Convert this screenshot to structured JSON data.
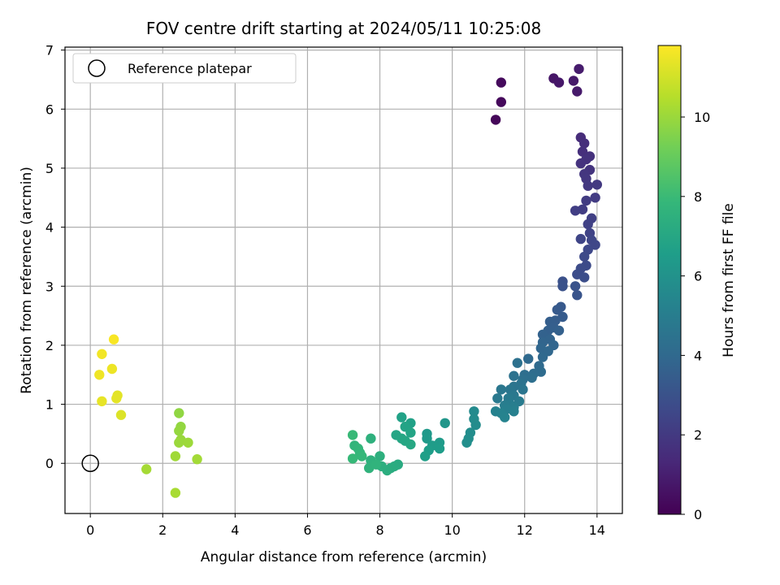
{
  "chart_data": {
    "type": "scatter",
    "title": "FOV centre drift starting at 2024/05/11 10:25:08",
    "xlabel": "Angular distance from reference (arcmin)",
    "ylabel": "Rotation from reference (arcmin)",
    "xlim": [
      -0.7,
      14.7
    ],
    "ylim": [
      -0.85,
      7.05
    ],
    "xticks": [
      0,
      2,
      4,
      6,
      8,
      10,
      12,
      14
    ],
    "yticks": [
      0,
      1,
      2,
      3,
      4,
      5,
      6,
      7
    ],
    "grid": true,
    "legend": {
      "placement": "top-left",
      "entries": [
        {
          "label": "Reference platepar",
          "marker": "open-circle"
        }
      ]
    },
    "reference_point": {
      "label": "Reference platepar",
      "x": 0,
      "y": 0
    },
    "colorbar": {
      "label": "Hours from first FF file",
      "colormap": "viridis",
      "range": [
        0,
        11.8
      ],
      "ticks": [
        0,
        2,
        4,
        6,
        8,
        10
      ]
    },
    "colormap_stops": [
      "#440154",
      "#482878",
      "#3e4989",
      "#31688e",
      "#26828e",
      "#1f9e89",
      "#35b779",
      "#6ece58",
      "#b5de2b",
      "#fde725"
    ],
    "series": [
      {
        "color_by": "hours",
        "points": [
          [
            11.2,
            5.82,
            0.2
          ],
          [
            11.35,
            6.12,
            0.25
          ],
          [
            11.35,
            6.45,
            0.3
          ],
          [
            12.8,
            6.52,
            0.7
          ],
          [
            12.95,
            6.45,
            0.75
          ],
          [
            13.35,
            6.48,
            0.8
          ],
          [
            13.45,
            6.3,
            0.85
          ],
          [
            13.5,
            6.68,
            0.9
          ],
          [
            13.55,
            5.52,
            1.5
          ],
          [
            13.65,
            5.42,
            1.55
          ],
          [
            13.6,
            5.28,
            1.6
          ],
          [
            13.8,
            5.2,
            1.65
          ],
          [
            13.7,
            5.15,
            1.7
          ],
          [
            13.55,
            5.08,
            1.75
          ],
          [
            13.8,
            4.97,
            1.8
          ],
          [
            13.65,
            4.9,
            1.85
          ],
          [
            13.7,
            4.82,
            1.9
          ],
          [
            13.75,
            4.7,
            1.95
          ],
          [
            14.0,
            4.72,
            2.0
          ],
          [
            13.95,
            4.5,
            2.05
          ],
          [
            13.7,
            4.45,
            2.1
          ],
          [
            13.6,
            4.3,
            2.15
          ],
          [
            13.4,
            4.28,
            2.2
          ],
          [
            13.85,
            4.15,
            2.25
          ],
          [
            13.75,
            4.05,
            2.3
          ],
          [
            13.8,
            3.9,
            2.4
          ],
          [
            13.55,
            3.8,
            2.45
          ],
          [
            13.85,
            3.78,
            2.5
          ],
          [
            13.95,
            3.7,
            2.55
          ],
          [
            13.75,
            3.62,
            2.6
          ],
          [
            13.65,
            3.5,
            2.65
          ],
          [
            13.7,
            3.35,
            2.7
          ],
          [
            13.55,
            3.3,
            2.75
          ],
          [
            13.45,
            3.2,
            2.8
          ],
          [
            13.65,
            3.15,
            2.85
          ],
          [
            13.05,
            3.08,
            2.95
          ],
          [
            13.05,
            3.0,
            3.0
          ],
          [
            13.4,
            3.0,
            3.05
          ],
          [
            13.45,
            2.85,
            3.1
          ],
          [
            13.0,
            2.65,
            3.3
          ],
          [
            12.9,
            2.6,
            3.35
          ],
          [
            13.05,
            2.48,
            3.4
          ],
          [
            12.85,
            2.42,
            3.45
          ],
          [
            12.7,
            2.4,
            3.5
          ],
          [
            12.8,
            2.3,
            3.55
          ],
          [
            12.65,
            2.25,
            3.6
          ],
          [
            12.95,
            2.25,
            3.65
          ],
          [
            12.5,
            2.18,
            3.7
          ],
          [
            12.7,
            2.1,
            3.75
          ],
          [
            12.5,
            2.05,
            3.8
          ],
          [
            12.8,
            2.0,
            3.85
          ],
          [
            12.45,
            1.95,
            3.9
          ],
          [
            12.65,
            1.9,
            3.95
          ],
          [
            12.5,
            1.8,
            4.0
          ],
          [
            12.1,
            1.77,
            4.05
          ],
          [
            12.4,
            1.65,
            4.1
          ],
          [
            12.45,
            1.55,
            4.15
          ],
          [
            12.25,
            1.52,
            4.2
          ],
          [
            12.0,
            1.5,
            4.25
          ],
          [
            12.2,
            1.45,
            4.3
          ],
          [
            11.95,
            1.42,
            4.35
          ],
          [
            11.8,
            1.7,
            4.4
          ],
          [
            11.7,
            1.48,
            4.45
          ],
          [
            11.9,
            1.35,
            4.5
          ],
          [
            11.7,
            1.3,
            4.55
          ],
          [
            11.95,
            1.25,
            4.6
          ],
          [
            11.6,
            1.25,
            4.65
          ],
          [
            11.35,
            1.25,
            4.7
          ],
          [
            11.7,
            1.15,
            4.75
          ],
          [
            11.25,
            1.1,
            4.8
          ],
          [
            11.55,
            1.1,
            4.85
          ],
          [
            11.85,
            1.05,
            4.9
          ],
          [
            11.6,
            1.0,
            4.95
          ],
          [
            11.45,
            0.98,
            5.0
          ],
          [
            11.7,
            0.95,
            5.05
          ],
          [
            11.5,
            0.92,
            5.1
          ],
          [
            11.7,
            0.88,
            5.15
          ],
          [
            11.2,
            0.88,
            5.2
          ],
          [
            11.35,
            0.85,
            5.25
          ],
          [
            11.45,
            0.78,
            5.3
          ],
          [
            10.6,
            0.88,
            5.6
          ],
          [
            10.6,
            0.75,
            5.65
          ],
          [
            10.65,
            0.65,
            5.7
          ],
          [
            10.5,
            0.52,
            5.75
          ],
          [
            10.45,
            0.42,
            5.8
          ],
          [
            10.4,
            0.35,
            5.85
          ],
          [
            9.8,
            0.68,
            6.2
          ],
          [
            9.3,
            0.5,
            6.3
          ],
          [
            9.3,
            0.42,
            6.35
          ],
          [
            9.65,
            0.35,
            6.4
          ],
          [
            9.45,
            0.3,
            6.45
          ],
          [
            9.65,
            0.25,
            6.5
          ],
          [
            9.35,
            0.22,
            6.55
          ],
          [
            9.25,
            0.12,
            6.6
          ],
          [
            8.85,
            0.68,
            6.7
          ],
          [
            8.6,
            0.78,
            6.75
          ],
          [
            8.7,
            0.62,
            6.8
          ],
          [
            8.85,
            0.52,
            6.85
          ],
          [
            8.45,
            0.48,
            6.9
          ],
          [
            8.6,
            0.42,
            6.95
          ],
          [
            8.7,
            0.38,
            7.0
          ],
          [
            8.85,
            0.32,
            7.05
          ],
          [
            8.5,
            -0.02,
            7.2
          ],
          [
            8.4,
            -0.05,
            7.25
          ],
          [
            8.3,
            -0.08,
            7.3
          ],
          [
            8.2,
            -0.12,
            7.35
          ],
          [
            8.05,
            -0.05,
            7.4
          ],
          [
            8.0,
            0.12,
            7.45
          ],
          [
            7.75,
            0.42,
            7.5
          ],
          [
            7.75,
            0.05,
            7.55
          ],
          [
            7.7,
            -0.08,
            7.6
          ],
          [
            7.9,
            -0.02,
            7.65
          ],
          [
            7.3,
            0.3,
            7.7
          ],
          [
            7.4,
            0.25,
            7.75
          ],
          [
            7.45,
            0.18,
            7.8
          ],
          [
            7.5,
            0.12,
            7.85
          ],
          [
            7.25,
            0.08,
            7.9
          ],
          [
            7.25,
            0.48,
            7.95
          ],
          [
            2.45,
            0.85,
            9.8
          ],
          [
            2.5,
            0.62,
            9.85
          ],
          [
            2.45,
            0.55,
            9.9
          ],
          [
            2.5,
            0.4,
            9.95
          ],
          [
            2.45,
            0.35,
            10.0
          ],
          [
            2.7,
            0.35,
            10.05
          ],
          [
            2.35,
            0.12,
            10.1
          ],
          [
            2.95,
            0.07,
            10.15
          ],
          [
            1.55,
            -0.1,
            10.2
          ],
          [
            2.35,
            -0.5,
            10.25
          ],
          [
            0.85,
            0.82,
            11.2
          ],
          [
            0.75,
            1.15,
            11.3
          ],
          [
            0.72,
            1.1,
            11.35
          ],
          [
            0.32,
            1.05,
            11.4
          ],
          [
            0.6,
            1.6,
            11.5
          ],
          [
            0.25,
            1.5,
            11.55
          ],
          [
            0.32,
            1.85,
            11.6
          ],
          [
            0.65,
            2.1,
            11.7
          ]
        ]
      }
    ]
  }
}
